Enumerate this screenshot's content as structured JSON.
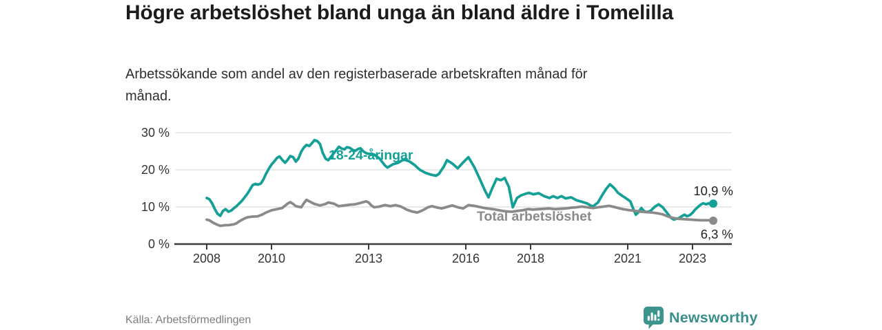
{
  "header": {
    "title": "Högre arbetslöshet bland unga än bland äldre i Tomelilla",
    "subtitle": "Arbetssökande som andel av den registerbaserade arbetskraften månad för månad."
  },
  "footer": {
    "source": "Källa: Arbetsförmedlingen",
    "brand": "Newsworthy",
    "logo_icon": "bar-chart-speech-bubble-icon"
  },
  "colors": {
    "youth": "#14a096",
    "total": "#8a8a8a",
    "axis": "#3a3a3a",
    "grid": "#dcdcdc",
    "brand": "#3d948c",
    "value_label": "#222222"
  },
  "chart_data": {
    "type": "line",
    "grid": "horizontal",
    "legend_position": "inline-labels",
    "xlim": [
      2007.05,
      2024.2
    ],
    "ylim": [
      0,
      30
    ],
    "x_ticks": [
      {
        "v": 2008,
        "label": "2008"
      },
      {
        "v": 2010,
        "label": "2010"
      },
      {
        "v": 2013,
        "label": "2013"
      },
      {
        "v": 2016,
        "label": "2016"
      },
      {
        "v": 2018,
        "label": "2018"
      },
      {
        "v": 2021,
        "label": "2021"
      },
      {
        "v": 2023,
        "label": "2023"
      }
    ],
    "y_ticks": [
      {
        "v": 0,
        "label": "0 %"
      },
      {
        "v": 10,
        "label": "10 %"
      },
      {
        "v": 20,
        "label": "20 %"
      },
      {
        "v": 30,
        "label": "30 %"
      }
    ],
    "series": [
      {
        "key": "youth",
        "name": "18-24-åringar",
        "color": "#14a096",
        "end_label": "10,9 %",
        "last_value": 10.9,
        "points": [
          [
            2008.0,
            12.4
          ],
          [
            2008.08,
            12.1
          ],
          [
            2008.17,
            10.9
          ],
          [
            2008.25,
            9.4
          ],
          [
            2008.33,
            8.2
          ],
          [
            2008.42,
            7.6
          ],
          [
            2008.5,
            8.9
          ],
          [
            2008.58,
            9.4
          ],
          [
            2008.67,
            8.7
          ],
          [
            2008.75,
            9.0
          ],
          [
            2008.83,
            9.6
          ],
          [
            2008.92,
            10.2
          ],
          [
            2009.0,
            10.9
          ],
          [
            2009.08,
            11.6
          ],
          [
            2009.17,
            12.6
          ],
          [
            2009.25,
            13.5
          ],
          [
            2009.33,
            14.6
          ],
          [
            2009.42,
            15.9
          ],
          [
            2009.5,
            16.2
          ],
          [
            2009.58,
            16.0
          ],
          [
            2009.67,
            16.3
          ],
          [
            2009.75,
            17.4
          ],
          [
            2009.83,
            18.9
          ],
          [
            2009.92,
            20.3
          ],
          [
            2010.0,
            21.4
          ],
          [
            2010.08,
            22.2
          ],
          [
            2010.17,
            23.2
          ],
          [
            2010.25,
            23.6
          ],
          [
            2010.33,
            22.7
          ],
          [
            2010.42,
            21.9
          ],
          [
            2010.5,
            22.7
          ],
          [
            2010.58,
            23.7
          ],
          [
            2010.67,
            23.4
          ],
          [
            2010.75,
            22.2
          ],
          [
            2010.83,
            23.0
          ],
          [
            2010.92,
            24.9
          ],
          [
            2011.0,
            26.0
          ],
          [
            2011.08,
            26.7
          ],
          [
            2011.17,
            26.4
          ],
          [
            2011.25,
            27.2
          ],
          [
            2011.33,
            28.0
          ],
          [
            2011.42,
            27.7
          ],
          [
            2011.5,
            26.9
          ],
          [
            2011.58,
            24.6
          ],
          [
            2011.67,
            23.0
          ],
          [
            2011.75,
            22.6
          ],
          [
            2011.83,
            23.4
          ],
          [
            2011.92,
            24.4
          ],
          [
            2012.0,
            25.3
          ],
          [
            2012.08,
            26.2
          ],
          [
            2012.17,
            25.7
          ],
          [
            2012.25,
            25.5
          ],
          [
            2012.33,
            26.1
          ],
          [
            2012.42,
            25.9
          ],
          [
            2012.5,
            25.4
          ],
          [
            2012.58,
            25.1
          ],
          [
            2012.67,
            25.6
          ],
          [
            2012.75,
            25.8
          ],
          [
            2012.83,
            25.0
          ],
          [
            2012.92,
            24.5
          ],
          [
            2013.0,
            24.3
          ],
          [
            2013.17,
            24.1
          ],
          [
            2013.33,
            23.1
          ],
          [
            2013.5,
            21.2
          ],
          [
            2013.58,
            20.6
          ],
          [
            2013.75,
            21.5
          ],
          [
            2013.92,
            21.9
          ],
          [
            2014.08,
            22.8
          ],
          [
            2014.25,
            22.3
          ],
          [
            2014.42,
            21.3
          ],
          [
            2014.58,
            20.0
          ],
          [
            2014.75,
            19.2
          ],
          [
            2014.92,
            18.7
          ],
          [
            2015.08,
            18.4
          ],
          [
            2015.17,
            18.9
          ],
          [
            2015.33,
            21.0
          ],
          [
            2015.42,
            22.6
          ],
          [
            2015.58,
            21.7
          ],
          [
            2015.75,
            20.4
          ],
          [
            2015.92,
            22.0
          ],
          [
            2016.08,
            23.4
          ],
          [
            2016.25,
            20.9
          ],
          [
            2016.42,
            17.8
          ],
          [
            2016.58,
            14.6
          ],
          [
            2016.7,
            12.6
          ],
          [
            2016.83,
            15.3
          ],
          [
            2016.95,
            17.6
          ],
          [
            2017.08,
            17.2
          ],
          [
            2017.2,
            17.8
          ],
          [
            2017.33,
            15.4
          ],
          [
            2017.45,
            9.9
          ],
          [
            2017.58,
            12.4
          ],
          [
            2017.7,
            13.1
          ],
          [
            2017.83,
            13.5
          ],
          [
            2017.95,
            13.8
          ],
          [
            2018.08,
            13.4
          ],
          [
            2018.25,
            13.7
          ],
          [
            2018.42,
            12.9
          ],
          [
            2018.58,
            12.4
          ],
          [
            2018.7,
            12.9
          ],
          [
            2018.83,
            12.4
          ],
          [
            2018.95,
            12.9
          ],
          [
            2019.08,
            12.3
          ],
          [
            2019.25,
            12.6
          ],
          [
            2019.42,
            11.8
          ],
          [
            2019.58,
            11.4
          ],
          [
            2019.75,
            10.9
          ],
          [
            2019.92,
            10.1
          ],
          [
            2020.08,
            11.2
          ],
          [
            2020.2,
            13.0
          ],
          [
            2020.33,
            14.8
          ],
          [
            2020.45,
            16.1
          ],
          [
            2020.58,
            15.1
          ],
          [
            2020.7,
            13.8
          ],
          [
            2020.83,
            13.0
          ],
          [
            2020.95,
            12.3
          ],
          [
            2021.08,
            11.5
          ],
          [
            2021.17,
            9.5
          ],
          [
            2021.25,
            7.9
          ],
          [
            2021.33,
            8.6
          ],
          [
            2021.42,
            9.7
          ],
          [
            2021.5,
            8.9
          ],
          [
            2021.58,
            8.6
          ],
          [
            2021.7,
            8.9
          ],
          [
            2021.83,
            10.0
          ],
          [
            2021.95,
            10.7
          ],
          [
            2022.08,
            9.9
          ],
          [
            2022.17,
            8.9
          ],
          [
            2022.25,
            8.0
          ],
          [
            2022.33,
            7.1
          ],
          [
            2022.42,
            6.6
          ],
          [
            2022.5,
            6.8
          ],
          [
            2022.58,
            7.0
          ],
          [
            2022.67,
            7.5
          ],
          [
            2022.75,
            7.9
          ],
          [
            2022.83,
            7.5
          ],
          [
            2022.92,
            7.8
          ],
          [
            2023.0,
            8.4
          ],
          [
            2023.08,
            9.3
          ],
          [
            2023.17,
            10.0
          ],
          [
            2023.25,
            10.6
          ],
          [
            2023.33,
            11.0
          ],
          [
            2023.42,
            10.7
          ],
          [
            2023.5,
            11.0
          ],
          [
            2023.58,
            10.5
          ],
          [
            2023.64,
            10.9
          ]
        ]
      },
      {
        "key": "total",
        "name": "Total arbetslöshet",
        "color": "#8a8a8a",
        "end_label": "6,3 %",
        "last_value": 6.3,
        "points": [
          [
            2008.0,
            6.6
          ],
          [
            2008.08,
            6.4
          ],
          [
            2008.17,
            5.9
          ],
          [
            2008.25,
            5.5
          ],
          [
            2008.33,
            5.2
          ],
          [
            2008.42,
            4.9
          ],
          [
            2008.5,
            5.0
          ],
          [
            2008.58,
            5.1
          ],
          [
            2008.67,
            5.1
          ],
          [
            2008.75,
            5.2
          ],
          [
            2008.83,
            5.3
          ],
          [
            2008.92,
            5.6
          ],
          [
            2009.0,
            6.1
          ],
          [
            2009.08,
            6.5
          ],
          [
            2009.17,
            6.9
          ],
          [
            2009.25,
            7.2
          ],
          [
            2009.33,
            7.3
          ],
          [
            2009.42,
            7.4
          ],
          [
            2009.5,
            7.4
          ],
          [
            2009.58,
            7.5
          ],
          [
            2009.67,
            7.8
          ],
          [
            2009.75,
            8.1
          ],
          [
            2009.83,
            8.5
          ],
          [
            2009.92,
            8.8
          ],
          [
            2010.0,
            9.1
          ],
          [
            2010.17,
            9.4
          ],
          [
            2010.33,
            9.7
          ],
          [
            2010.5,
            10.9
          ],
          [
            2010.58,
            11.3
          ],
          [
            2010.67,
            10.8
          ],
          [
            2010.75,
            10.2
          ],
          [
            2010.92,
            9.9
          ],
          [
            2011.0,
            11.0
          ],
          [
            2011.08,
            11.9
          ],
          [
            2011.17,
            11.5
          ],
          [
            2011.33,
            10.8
          ],
          [
            2011.5,
            10.4
          ],
          [
            2011.67,
            10.8
          ],
          [
            2011.75,
            11.2
          ],
          [
            2011.92,
            10.9
          ],
          [
            2012.08,
            10.2
          ],
          [
            2012.25,
            10.4
          ],
          [
            2012.42,
            10.6
          ],
          [
            2012.58,
            10.7
          ],
          [
            2012.75,
            11.1
          ],
          [
            2012.92,
            11.5
          ],
          [
            2013.0,
            11.2
          ],
          [
            2013.08,
            10.4
          ],
          [
            2013.17,
            9.9
          ],
          [
            2013.33,
            10.1
          ],
          [
            2013.5,
            10.5
          ],
          [
            2013.67,
            10.2
          ],
          [
            2013.83,
            10.5
          ],
          [
            2014.0,
            10.1
          ],
          [
            2014.17,
            9.3
          ],
          [
            2014.33,
            8.8
          ],
          [
            2014.5,
            8.5
          ],
          [
            2014.67,
            9.1
          ],
          [
            2014.83,
            9.9
          ],
          [
            2014.95,
            10.2
          ],
          [
            2015.08,
            9.9
          ],
          [
            2015.25,
            9.6
          ],
          [
            2015.42,
            10.0
          ],
          [
            2015.58,
            10.4
          ],
          [
            2015.75,
            9.9
          ],
          [
            2015.92,
            9.6
          ],
          [
            2016.08,
            10.5
          ],
          [
            2016.25,
            10.3
          ],
          [
            2016.42,
            10.0
          ],
          [
            2016.58,
            9.7
          ],
          [
            2016.75,
            9.5
          ],
          [
            2016.92,
            9.3
          ],
          [
            2017.08,
            9.0
          ],
          [
            2017.25,
            8.8
          ],
          [
            2017.42,
            8.7
          ],
          [
            2017.58,
            8.9
          ],
          [
            2017.75,
            9.1
          ],
          [
            2017.92,
            9.4
          ],
          [
            2018.08,
            9.3
          ],
          [
            2018.25,
            9.4
          ],
          [
            2018.42,
            9.5
          ],
          [
            2018.58,
            9.6
          ],
          [
            2018.75,
            9.4
          ],
          [
            2018.92,
            9.5
          ],
          [
            2019.08,
            9.6
          ],
          [
            2019.25,
            9.8
          ],
          [
            2019.42,
            9.9
          ],
          [
            2019.58,
            10.1
          ],
          [
            2019.75,
            9.9
          ],
          [
            2019.92,
            9.7
          ],
          [
            2020.08,
            9.9
          ],
          [
            2020.25,
            10.1
          ],
          [
            2020.42,
            10.3
          ],
          [
            2020.58,
            10.0
          ],
          [
            2020.75,
            9.6
          ],
          [
            2020.92,
            9.3
          ],
          [
            2021.08,
            9.1
          ],
          [
            2021.25,
            8.9
          ],
          [
            2021.42,
            8.7
          ],
          [
            2021.58,
            8.6
          ],
          [
            2021.75,
            8.5
          ],
          [
            2021.92,
            8.3
          ],
          [
            2022.08,
            8.0
          ],
          [
            2022.25,
            7.4
          ],
          [
            2022.42,
            7.0
          ],
          [
            2022.58,
            6.8
          ],
          [
            2022.75,
            6.7
          ],
          [
            2022.92,
            6.6
          ],
          [
            2023.08,
            6.5
          ],
          [
            2023.25,
            6.4
          ],
          [
            2023.42,
            6.4
          ],
          [
            2023.58,
            6.4
          ],
          [
            2023.64,
            6.3
          ]
        ]
      }
    ]
  }
}
